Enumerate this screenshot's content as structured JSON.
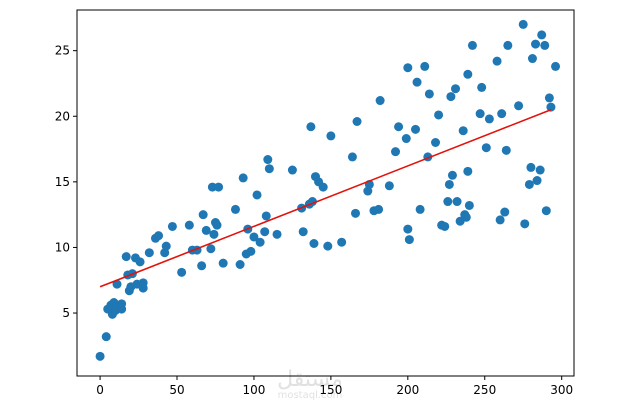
{
  "chart_data": {
    "type": "scatter",
    "title": "",
    "xlabel": "",
    "ylabel": "",
    "xlim": [
      -15,
      308
    ],
    "ylim": [
      0.2,
      28.1
    ],
    "xticks": [
      0,
      50,
      100,
      150,
      200,
      250,
      300
    ],
    "yticks": [
      5,
      10,
      15,
      20,
      25
    ],
    "grid": false,
    "colors": {
      "points": "#1f77b4",
      "fit_line": "#e3120b",
      "axes": "#000000"
    },
    "series": [
      {
        "values": [
          [
            0,
            1.7
          ],
          [
            4,
            3.2
          ],
          [
            5,
            5.3
          ],
          [
            7,
            5.6
          ],
          [
            8,
            4.9
          ],
          [
            9,
            5.8
          ],
          [
            10,
            5.2
          ],
          [
            11,
            7.2
          ],
          [
            13,
            5.5
          ],
          [
            14,
            5.3
          ],
          [
            14,
            5.7
          ],
          [
            17,
            9.3
          ],
          [
            18,
            7.9
          ],
          [
            19,
            6.7
          ],
          [
            20,
            7.0
          ],
          [
            21,
            8.0
          ],
          [
            23,
            9.2
          ],
          [
            24,
            7.2
          ],
          [
            26,
            8.9
          ],
          [
            28,
            6.9
          ],
          [
            28,
            7.3
          ],
          [
            32,
            9.6
          ],
          [
            36,
            10.7
          ],
          [
            38,
            10.9
          ],
          [
            42,
            9.6
          ],
          [
            43,
            10.1
          ],
          [
            47,
            11.6
          ],
          [
            53,
            8.1
          ],
          [
            58,
            11.7
          ],
          [
            60,
            9.8
          ],
          [
            63,
            9.8
          ],
          [
            66,
            8.6
          ],
          [
            67,
            12.5
          ],
          [
            69,
            11.3
          ],
          [
            72,
            9.9
          ],
          [
            73,
            14.6
          ],
          [
            74,
            11.0
          ],
          [
            75,
            11.9
          ],
          [
            76,
            11.7
          ],
          [
            77,
            14.6
          ],
          [
            80,
            8.8
          ],
          [
            88,
            12.9
          ],
          [
            91,
            8.7
          ],
          [
            93,
            15.3
          ],
          [
            95,
            9.5
          ],
          [
            96,
            11.4
          ],
          [
            98,
            9.7
          ],
          [
            100,
            10.8
          ],
          [
            102,
            14.0
          ],
          [
            104,
            10.4
          ],
          [
            107,
            11.2
          ],
          [
            108,
            12.4
          ],
          [
            109,
            16.7
          ],
          [
            110,
            16.0
          ],
          [
            115,
            11.0
          ],
          [
            125,
            15.9
          ],
          [
            131,
            13.0
          ],
          [
            132,
            11.2
          ],
          [
            136,
            13.3
          ],
          [
            137,
            19.2
          ],
          [
            138,
            13.5
          ],
          [
            139,
            10.3
          ],
          [
            140,
            15.4
          ],
          [
            142,
            15.0
          ],
          [
            145,
            14.6
          ],
          [
            148,
            10.1
          ],
          [
            150,
            18.5
          ],
          [
            157,
            10.4
          ],
          [
            164,
            16.9
          ],
          [
            166,
            12.6
          ],
          [
            167,
            19.6
          ],
          [
            174,
            14.3
          ],
          [
            175,
            14.8
          ],
          [
            178,
            12.8
          ],
          [
            181,
            12.9
          ],
          [
            182,
            21.2
          ],
          [
            188,
            14.7
          ],
          [
            192,
            17.3
          ],
          [
            194,
            19.2
          ],
          [
            199,
            18.3
          ],
          [
            200,
            23.7
          ],
          [
            200,
            11.4
          ],
          [
            201,
            10.6
          ],
          [
            205,
            19.0
          ],
          [
            206,
            22.6
          ],
          [
            208,
            12.9
          ],
          [
            211,
            23.8
          ],
          [
            213,
            16.9
          ],
          [
            214,
            21.7
          ],
          [
            218,
            18.0
          ],
          [
            220,
            20.1
          ],
          [
            222,
            11.7
          ],
          [
            224,
            11.6
          ],
          [
            226,
            13.5
          ],
          [
            227,
            14.8
          ],
          [
            228,
            21.5
          ],
          [
            229,
            15.5
          ],
          [
            231,
            22.1
          ],
          [
            232,
            13.5
          ],
          [
            234,
            12.0
          ],
          [
            236,
            18.9
          ],
          [
            237,
            12.5
          ],
          [
            238,
            12.3
          ],
          [
            239,
            23.2
          ],
          [
            239,
            15.8
          ],
          [
            240,
            13.2
          ],
          [
            242,
            25.4
          ],
          [
            247,
            20.2
          ],
          [
            248,
            22.2
          ],
          [
            251,
            17.6
          ],
          [
            253,
            19.8
          ],
          [
            258,
            24.2
          ],
          [
            260,
            12.1
          ],
          [
            261,
            20.2
          ],
          [
            263,
            12.7
          ],
          [
            264,
            17.4
          ],
          [
            265,
            25.4
          ],
          [
            272,
            20.8
          ],
          [
            275,
            27.0
          ],
          [
            276,
            11.8
          ],
          [
            279,
            14.8
          ],
          [
            280,
            16.1
          ],
          [
            281,
            24.4
          ],
          [
            283,
            25.5
          ],
          [
            284,
            15.1
          ],
          [
            286,
            15.9
          ],
          [
            287,
            26.2
          ],
          [
            289,
            25.4
          ],
          [
            290,
            12.8
          ],
          [
            292,
            21.4
          ],
          [
            293,
            20.7
          ],
          [
            296,
            23.8
          ]
        ]
      }
    ],
    "fit_line": {
      "x": [
        0,
        293
      ],
      "y": [
        7.0,
        20.5
      ]
    }
  },
  "watermark": {
    "script": "مستقل",
    "latin": "mostaql.com"
  }
}
